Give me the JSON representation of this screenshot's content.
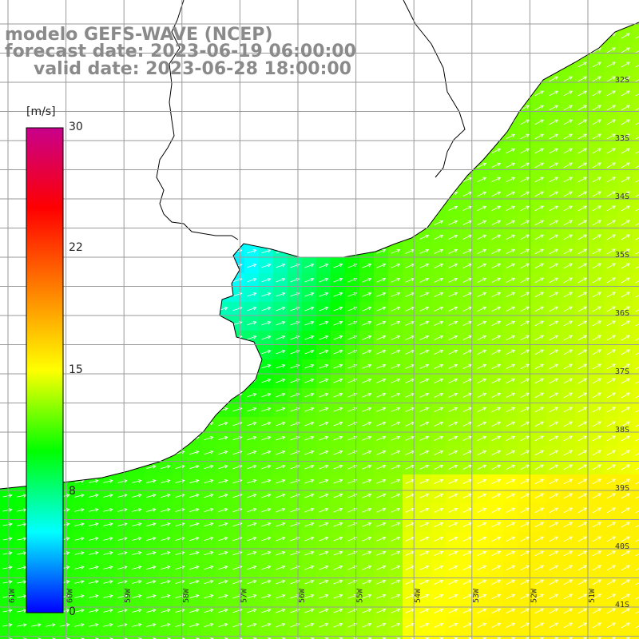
{
  "map": {
    "title_line1": "modelo GEFS-WAVE (NCEP)",
    "title_line2": "forecast date: 2023-06-19 06:00:00",
    "title_line3": "valid date: 2023-06-28 18:00:00"
  },
  "colorbar": {
    "unit": "[m/s]",
    "ticks": [
      "30",
      "22",
      "15",
      "8",
      "0"
    ],
    "tick_values": [
      30,
      22,
      15,
      8,
      0
    ],
    "range": [
      0,
      30
    ],
    "colors": [
      "#0000ff",
      "#00ffff",
      "#00ff00",
      "#ffff00",
      "#ff8000",
      "#ff0000",
      "#c8008c"
    ]
  },
  "axes": {
    "lat_labels": [
      "32S",
      "33S",
      "34S",
      "35S",
      "36S",
      "37S",
      "38S",
      "39S",
      "40S",
      "41S"
    ],
    "lon_labels": [
      "61W",
      "60W",
      "59W",
      "58W",
      "57W",
      "56W",
      "55W",
      "54W",
      "53W",
      "52W",
      "51W"
    ]
  },
  "colors": {
    "land": "#ffffff",
    "grid": "#9a9a9a",
    "coast": "#000000",
    "arrows": "#ffffff",
    "title": "#8a8a8a"
  }
}
